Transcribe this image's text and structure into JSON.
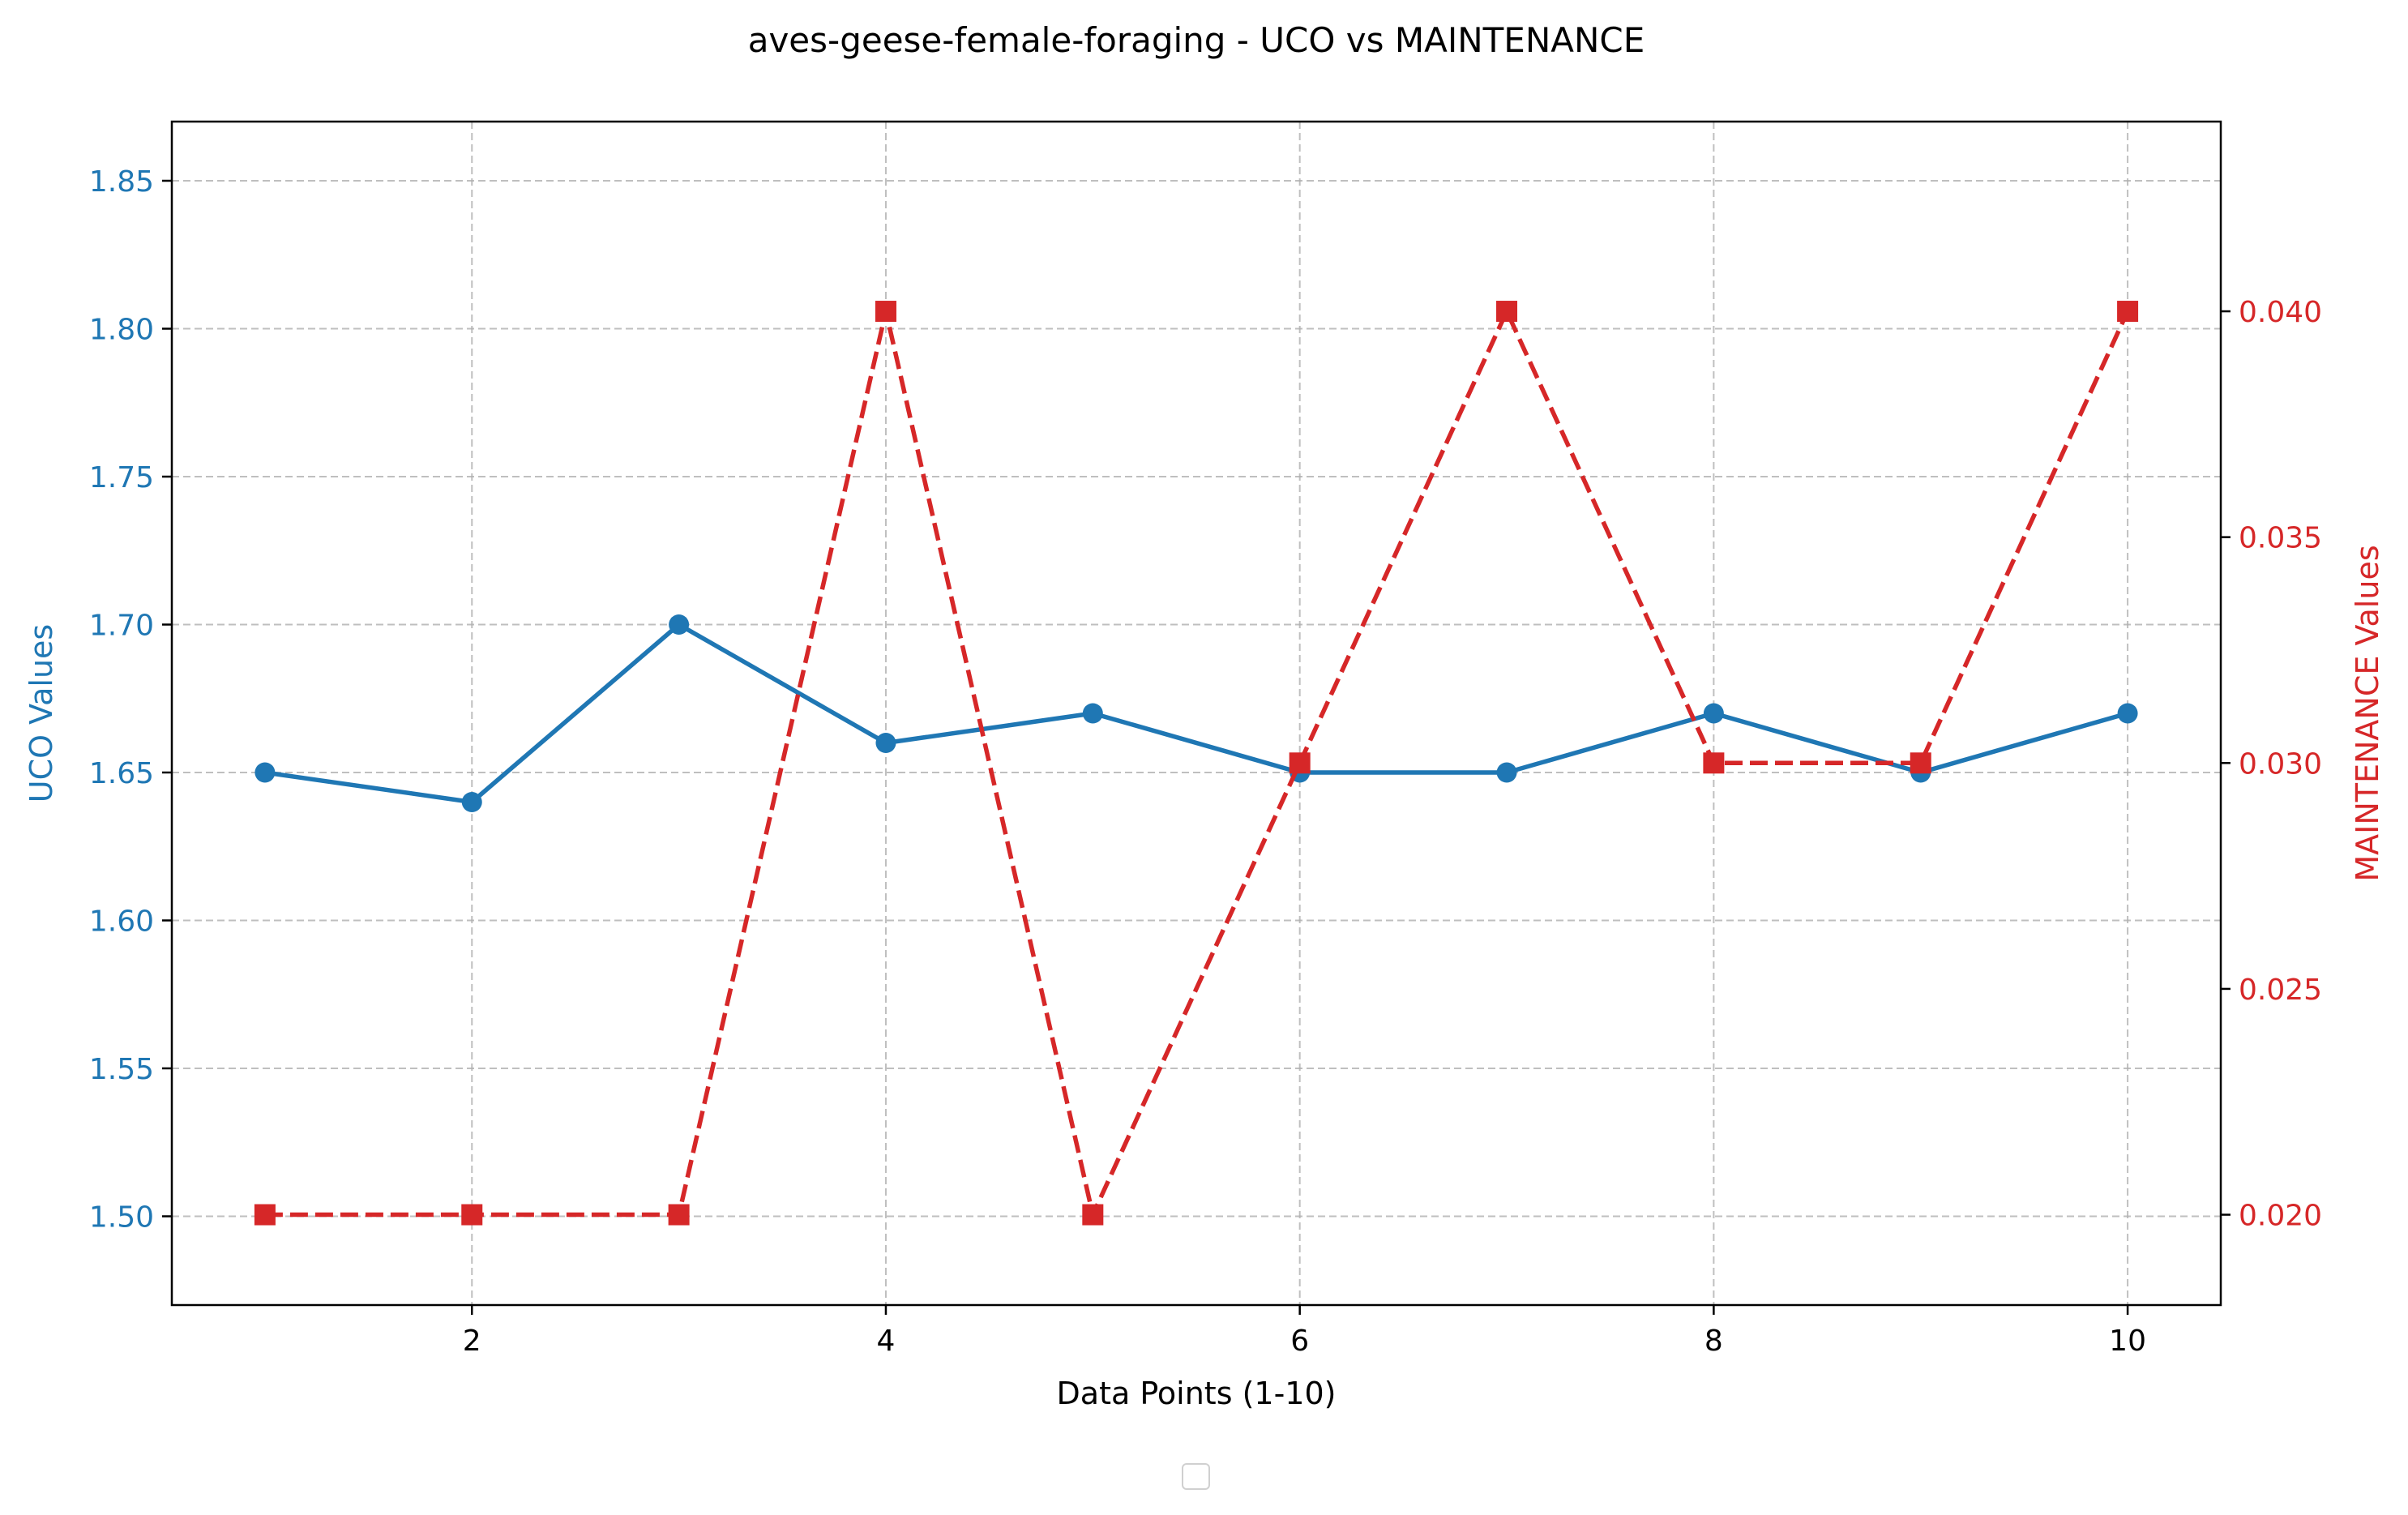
{
  "chart_data": {
    "type": "line",
    "title": "aves-geese-female-foraging - UCO vs MAINTENANCE",
    "xlabel": "Data Points (1-10)",
    "ylabel_left": "UCO Values",
    "ylabel_right": "MAINTENANCE Values",
    "x": [
      1,
      2,
      3,
      4,
      5,
      6,
      7,
      8,
      9,
      10
    ],
    "xlim": [
      0.55,
      10.45
    ],
    "x_ticks": [
      2,
      4,
      6,
      8,
      10
    ],
    "x_tick_labels": [
      "2",
      "4",
      "6",
      "8",
      "10"
    ],
    "grid": true,
    "series": [
      {
        "axis": "left",
        "color": "#1f77b4",
        "line_style": "solid",
        "marker": "circle",
        "values": [
          1.65,
          1.64,
          1.7,
          1.66,
          1.67,
          1.65,
          1.65,
          1.67,
          1.65,
          1.67
        ]
      },
      {
        "axis": "right",
        "color": "#d62728",
        "line_style": "dashed",
        "marker": "square",
        "values": [
          0.02,
          0.02,
          0.02,
          0.04,
          0.02,
          0.03,
          0.04,
          0.03,
          0.03,
          0.04
        ]
      }
    ],
    "y_left": {
      "lim": [
        1.47,
        1.87
      ],
      "ticks": [
        1.5,
        1.55,
        1.6,
        1.65,
        1.7,
        1.75,
        1.8,
        1.85
      ],
      "tick_labels": [
        "1.50",
        "1.55",
        "1.60",
        "1.65",
        "1.70",
        "1.75",
        "1.80",
        "1.85"
      ],
      "color": "#1f77b4"
    },
    "y_right": {
      "lim": [
        0.018,
        0.0442
      ],
      "ticks": [
        0.02,
        0.025,
        0.03,
        0.035,
        0.04
      ],
      "tick_labels": [
        "0.020",
        "0.025",
        "0.030",
        "0.035",
        "0.040"
      ],
      "color": "#d62728"
    },
    "legend": {
      "placement": "bottom-center",
      "entries": []
    }
  }
}
